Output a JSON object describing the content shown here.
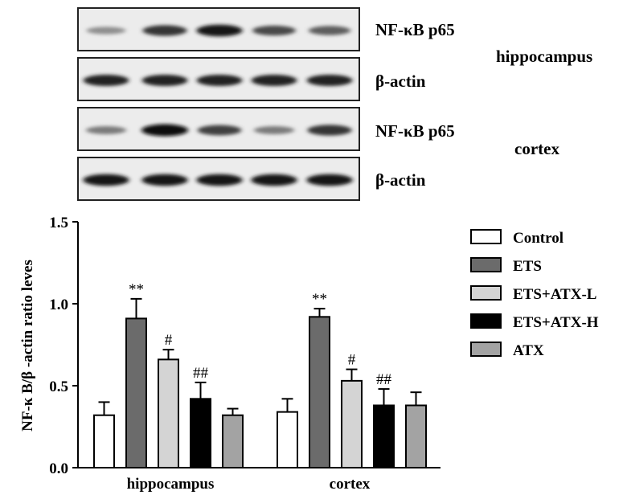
{
  "blot": {
    "strips": [
      {
        "label": "NF-κB p65",
        "intensities": [
          0.35,
          0.8,
          0.95,
          0.7,
          0.6
        ]
      },
      {
        "label": "β-actin",
        "intensities": [
          0.9,
          0.9,
          0.9,
          0.9,
          0.9
        ]
      },
      {
        "label": "NF-κB p65",
        "intensities": [
          0.45,
          1.0,
          0.75,
          0.45,
          0.8
        ]
      },
      {
        "label": "β-actin",
        "intensities": [
          0.95,
          0.95,
          0.95,
          0.95,
          0.95
        ]
      }
    ],
    "region_labels": [
      "hippocampus",
      "cortex"
    ]
  },
  "chart_data": {
    "type": "bar",
    "categories": [
      "hippocampus",
      "cortex"
    ],
    "ylabel": "NF-κ B/β -actin ratio leves",
    "ylim": [
      0,
      1.5
    ],
    "yticks": [
      "0.0",
      "0.5",
      "1.0",
      "1.5"
    ],
    "legend_position": "right",
    "series": [
      {
        "name": "Control",
        "color": "#ffffff",
        "values": [
          0.32,
          0.34
        ],
        "errors": [
          0.08,
          0.08
        ],
        "annotations": [
          "",
          ""
        ]
      },
      {
        "name": "ETS",
        "color": "#6b6b6b",
        "values": [
          0.91,
          0.92
        ],
        "errors": [
          0.12,
          0.05
        ],
        "annotations": [
          "**",
          "**"
        ]
      },
      {
        "name": "ETS+ATX-L",
        "color": "#d4d4d4",
        "values": [
          0.66,
          0.53
        ],
        "errors": [
          0.06,
          0.07
        ],
        "annotations": [
          "#",
          "#"
        ]
      },
      {
        "name": "ETS+ATX-H",
        "color": "#000000",
        "values": [
          0.42,
          0.38
        ],
        "errors": [
          0.1,
          0.1
        ],
        "annotations": [
          "##",
          "##"
        ]
      },
      {
        "name": "ATX",
        "color": "#a3a3a3",
        "values": [
          0.32,
          0.38
        ],
        "errors": [
          0.04,
          0.08
        ],
        "annotations": [
          "",
          ""
        ]
      }
    ]
  }
}
